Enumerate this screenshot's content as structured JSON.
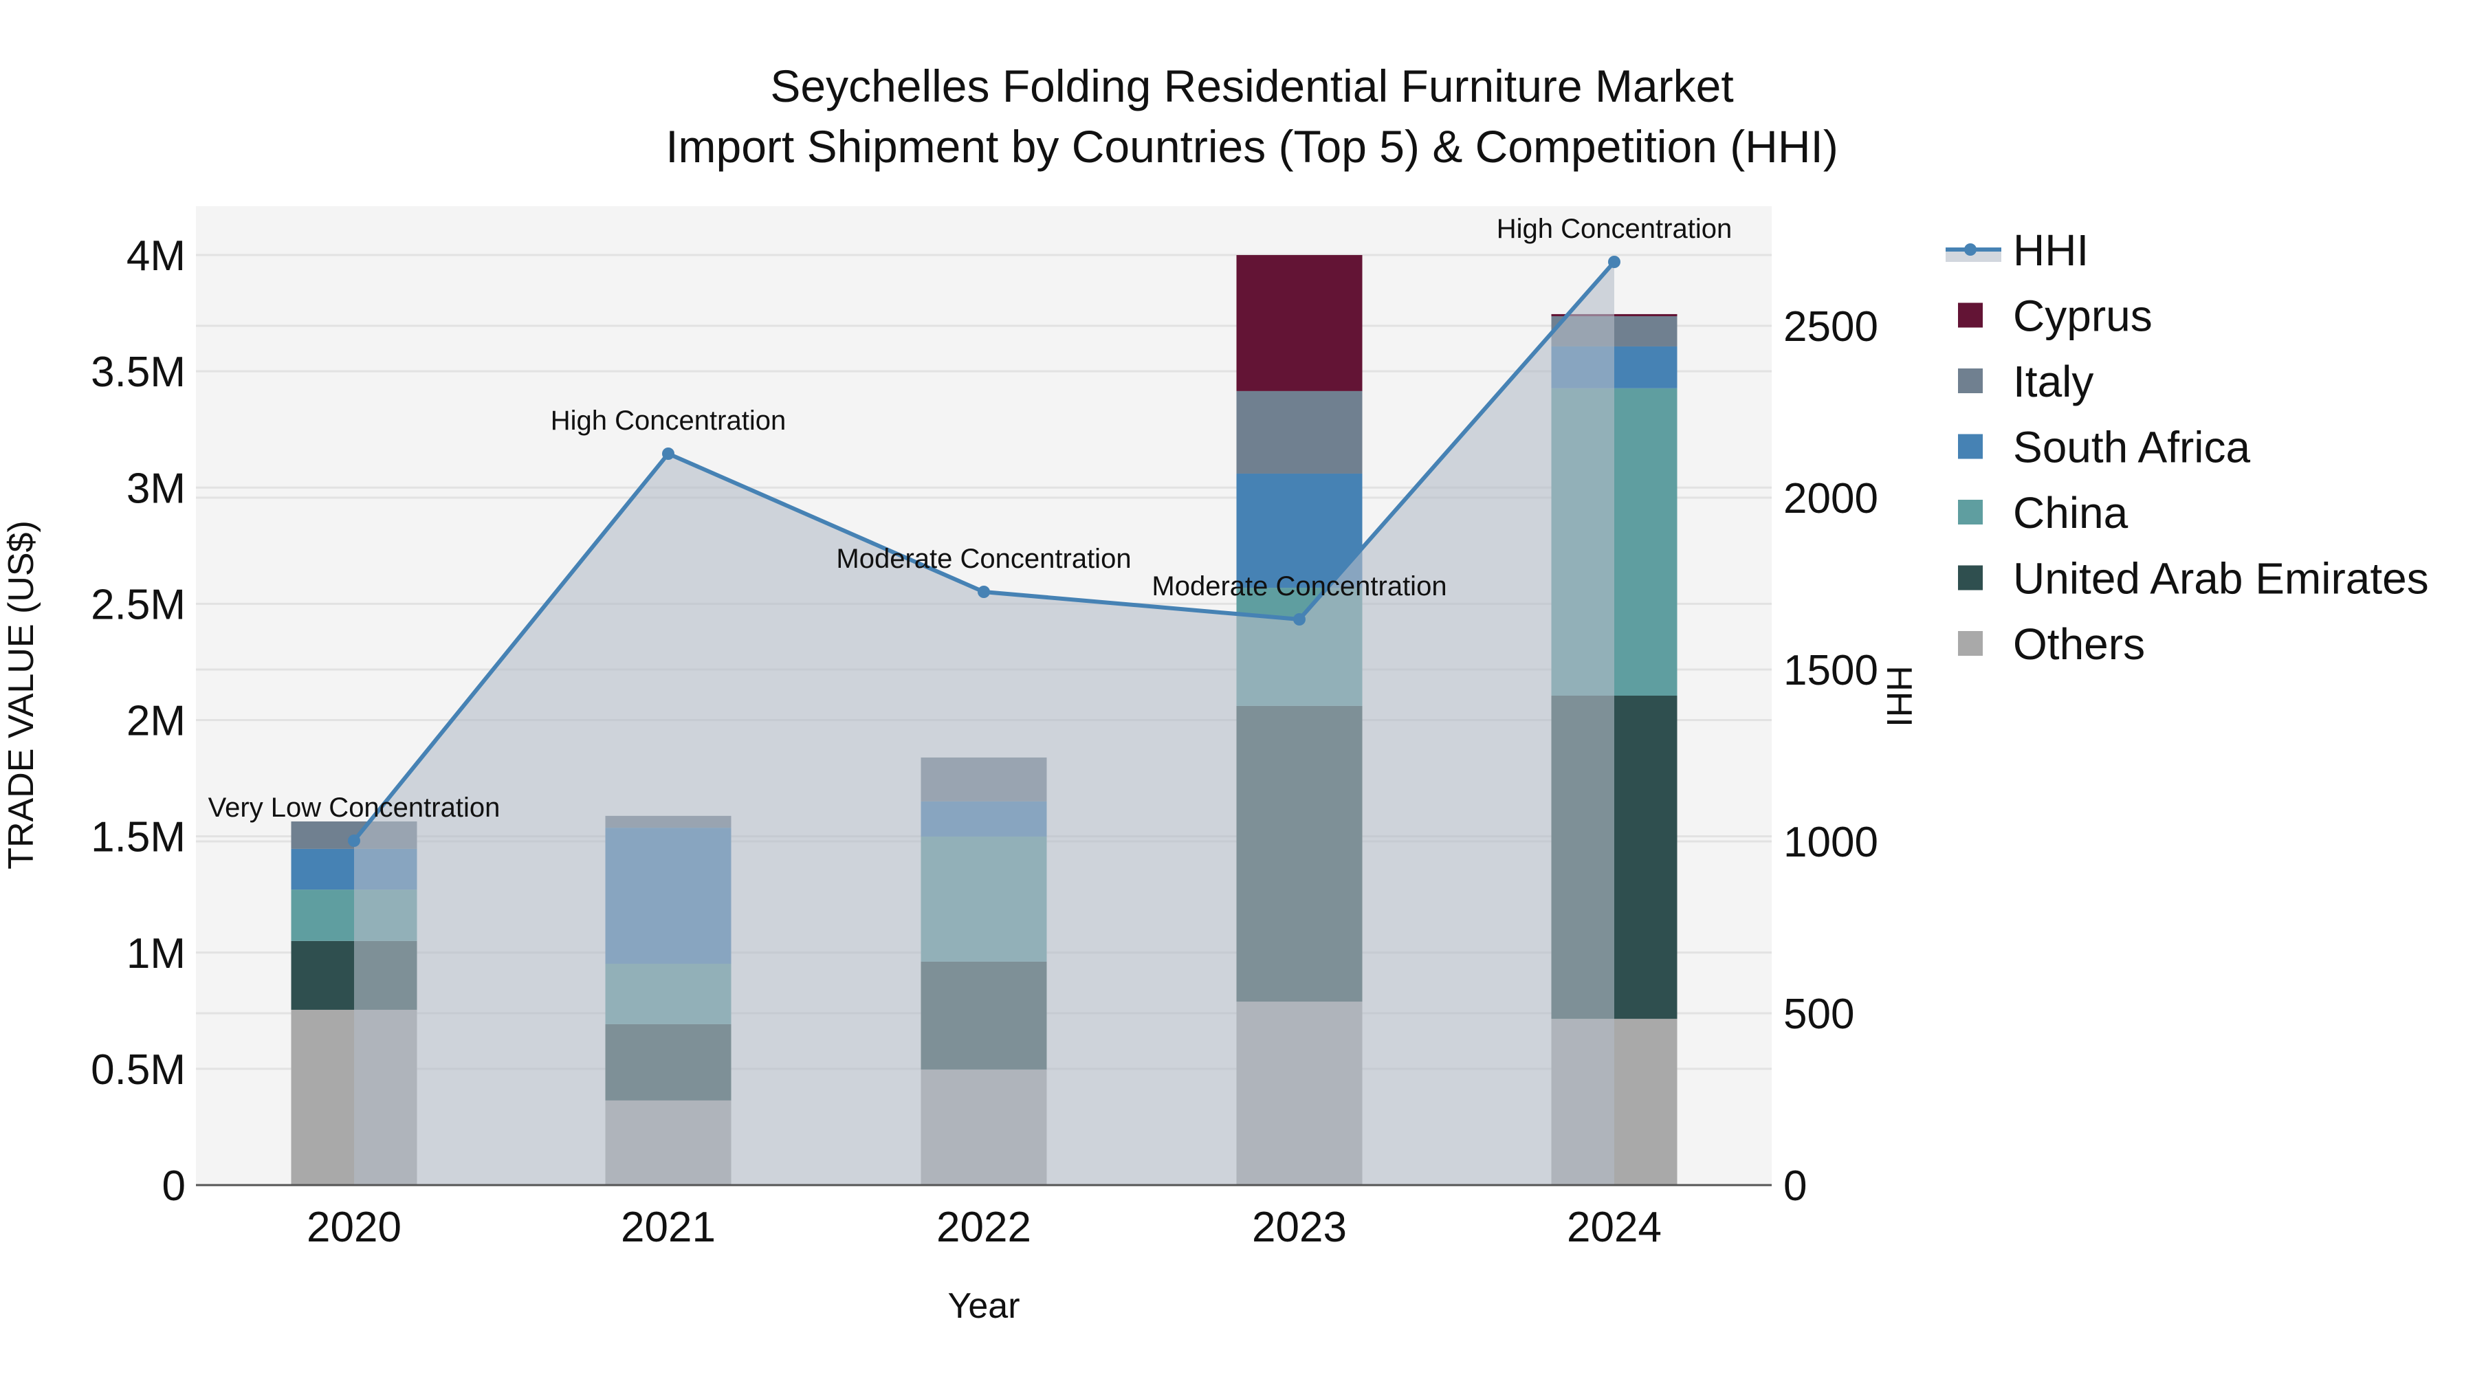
{
  "chart_data": {
    "type": "bar",
    "subtype": "stacked bar with secondary-axis line/area",
    "title": "Seychelles Folding Residential Furniture Market",
    "subtitle": "Import Shipment by Countries (Top 5) & Competition (HHI)",
    "xlabel": "Year",
    "ylabel": "TRADE VALUE (US$)",
    "y2label": "HHI",
    "categories": [
      "2020",
      "2021",
      "2022",
      "2023",
      "2024"
    ],
    "ylim": [
      0,
      4210000
    ],
    "y2lim": [
      0,
      2848
    ],
    "yticks": [
      {
        "value": 0,
        "label": "0"
      },
      {
        "value": 500000,
        "label": "0.5M"
      },
      {
        "value": 1000000,
        "label": "1M"
      },
      {
        "value": 1500000,
        "label": "1.5M"
      },
      {
        "value": 2000000,
        "label": "2M"
      },
      {
        "value": 2500000,
        "label": "2.5M"
      },
      {
        "value": 3000000,
        "label": "3M"
      },
      {
        "value": 3500000,
        "label": "3.5M"
      },
      {
        "value": 4000000,
        "label": "4M"
      }
    ],
    "y2ticks": [
      {
        "value": 0,
        "label": "0"
      },
      {
        "value": 500,
        "label": "500"
      },
      {
        "value": 1000,
        "label": "1000"
      },
      {
        "value": 1500,
        "label": "1500"
      },
      {
        "value": 2000,
        "label": "2000"
      },
      {
        "value": 2500,
        "label": "2500"
      }
    ],
    "grid": true,
    "legend_position": "right",
    "series": [
      {
        "name": "Others",
        "color": "#a9a9a9",
        "values": [
          754000,
          364000,
          497000,
          789000,
          715000
        ]
      },
      {
        "name": "United Arab Emirates",
        "color": "#2f4f4f",
        "values": [
          296000,
          328000,
          464000,
          1272000,
          1390000
        ]
      },
      {
        "name": "China",
        "color": "#5f9ea0",
        "values": [
          221000,
          260000,
          538000,
          508000,
          1322000
        ]
      },
      {
        "name": "South Africa",
        "color": "#4682b4",
        "values": [
          175000,
          585000,
          151000,
          491000,
          180000
        ]
      },
      {
        "name": "Italy",
        "color": "#708090",
        "values": [
          118000,
          51000,
          189000,
          355000,
          130000
        ]
      },
      {
        "name": "Cyprus",
        "color": "#631435",
        "values": [
          0,
          0,
          0,
          585000,
          9000
        ]
      }
    ],
    "line_series": {
      "name": "HHI",
      "axis": "y2",
      "color": "#4682b4",
      "fill_color": "rgba(180,188,200,0.6)",
      "values": [
        1002,
        2128,
        1726,
        1646,
        2686
      ],
      "annotations": [
        "Very Low Concentration",
        "High Concentration",
        "Moderate Concentration",
        "Moderate Concentration",
        "High Concentration"
      ]
    }
  },
  "legend": {
    "items": [
      {
        "label": "HHI",
        "kind": "line",
        "color": "#4682b4"
      },
      {
        "label": "Cyprus",
        "kind": "square",
        "color": "#631435"
      },
      {
        "label": "Italy",
        "kind": "square",
        "color": "#708090"
      },
      {
        "label": "South Africa",
        "kind": "square",
        "color": "#4682b4"
      },
      {
        "label": "China",
        "kind": "square",
        "color": "#5f9ea0"
      },
      {
        "label": "United Arab Emirates",
        "kind": "square",
        "color": "#2f4f4f"
      },
      {
        "label": "Others",
        "kind": "square",
        "color": "#a9a9a9"
      }
    ]
  },
  "colors": {
    "plot_bg": "#f4f4f4",
    "grid": "#e2e2e2",
    "axis_line": "#555555"
  }
}
